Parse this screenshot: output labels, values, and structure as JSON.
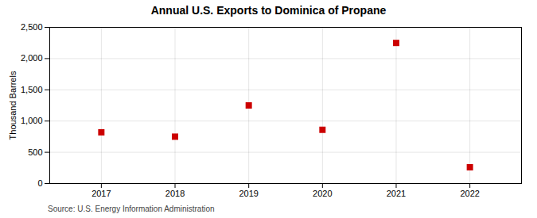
{
  "chart_data": {
    "type": "scatter",
    "title": "Annual U.S. Exports to Dominica of Propane",
    "ylabel": "Thousand Barrels",
    "source": "Source: U.S. Energy Information Administration",
    "x": [
      2017,
      2018,
      2019,
      2020,
      2021,
      2022
    ],
    "values": [
      820,
      750,
      1250,
      860,
      2250,
      260
    ],
    "color": "#cc0000",
    "marker": "square",
    "xlim": [
      2016.3,
      2022.7
    ],
    "xticks": [
      2017,
      2018,
      2019,
      2020,
      2021,
      2022
    ],
    "ylim": [
      0,
      2500
    ],
    "yticks": [
      0,
      500,
      {
        "value": 1000,
        "label": "1,000"
      },
      {
        "value": 1500,
        "label": "1,500"
      },
      {
        "value": 2000,
        "label": "2,000"
      },
      {
        "value": 2500,
        "label": "2,500"
      }
    ],
    "grid": true
  }
}
